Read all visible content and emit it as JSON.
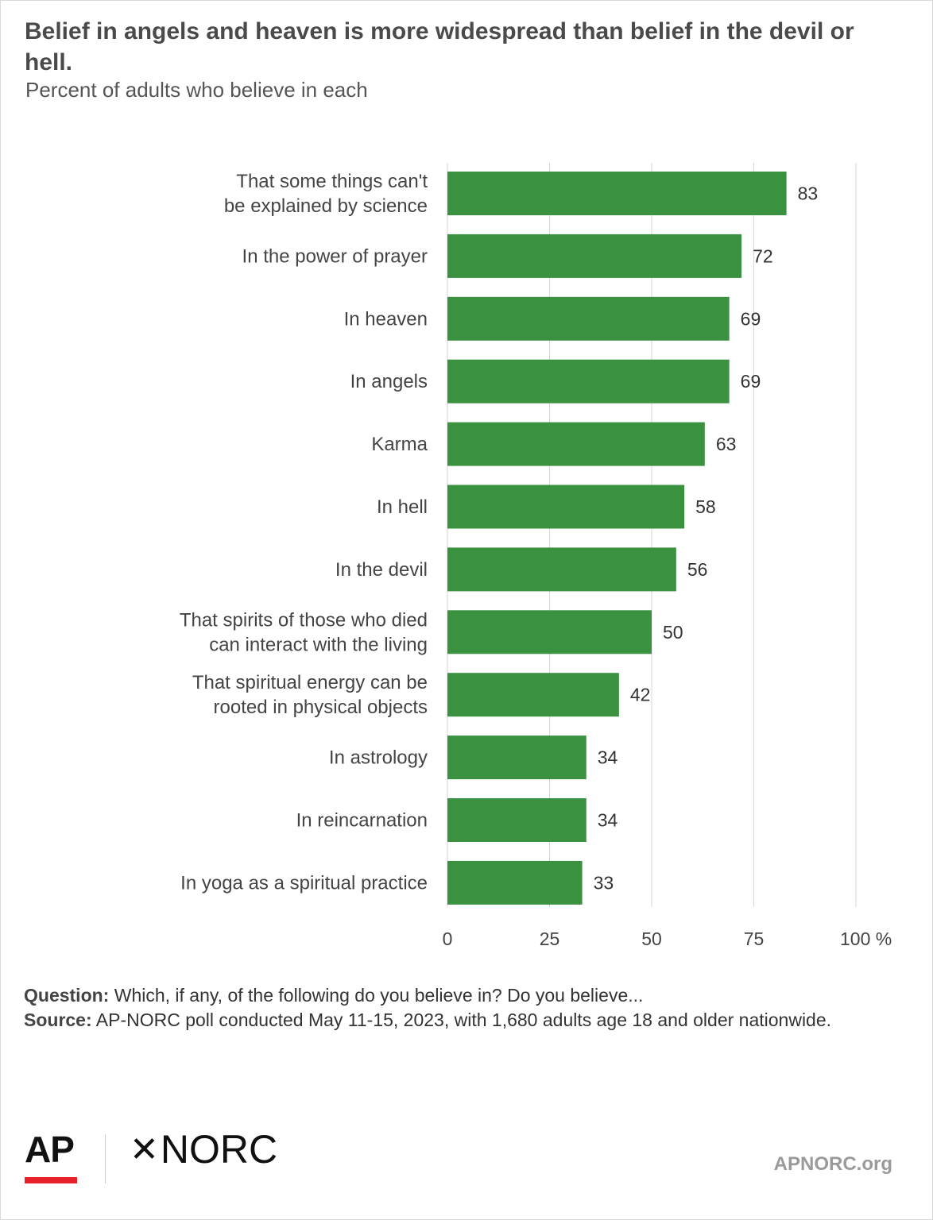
{
  "header": {
    "title": "Belief in angels and heaven is more widespread than belief in the devil or hell.",
    "subtitle": "Percent of adults who believe in each"
  },
  "chart_data": {
    "type": "bar",
    "orientation": "horizontal",
    "categories": [
      [
        "That some things can't",
        "be explained by science"
      ],
      [
        "In the power of prayer"
      ],
      [
        "In heaven"
      ],
      [
        "In angels"
      ],
      [
        "Karma"
      ],
      [
        "In hell"
      ],
      [
        "In the devil"
      ],
      [
        "That spirits of those who died",
        "can interact with the living"
      ],
      [
        "That spiritual energy can be",
        "rooted in physical objects"
      ],
      [
        "In astrology"
      ],
      [
        "In reincarnation"
      ],
      [
        "In yoga as a spiritual practice"
      ]
    ],
    "values": [
      83,
      72,
      69,
      69,
      63,
      58,
      56,
      50,
      42,
      34,
      34,
      33
    ],
    "xlim": [
      0,
      100
    ],
    "xticks": [
      "0",
      "25",
      "50",
      "75",
      "100 %"
    ],
    "grid": true,
    "bar_color": "#3a9241"
  },
  "notes": {
    "question_label": "Question:",
    "question_text": "Which, if any, of the following do you believe in? Do you believe...",
    "source_label": "Source:",
    "source_text": "AP-NORC poll conducted May 11-15, 2023, with 1,680 adults age 18 and older nationwide."
  },
  "footer": {
    "logo_ap": "AP",
    "logo_norc": "NORC",
    "site": "APNORC.org"
  }
}
